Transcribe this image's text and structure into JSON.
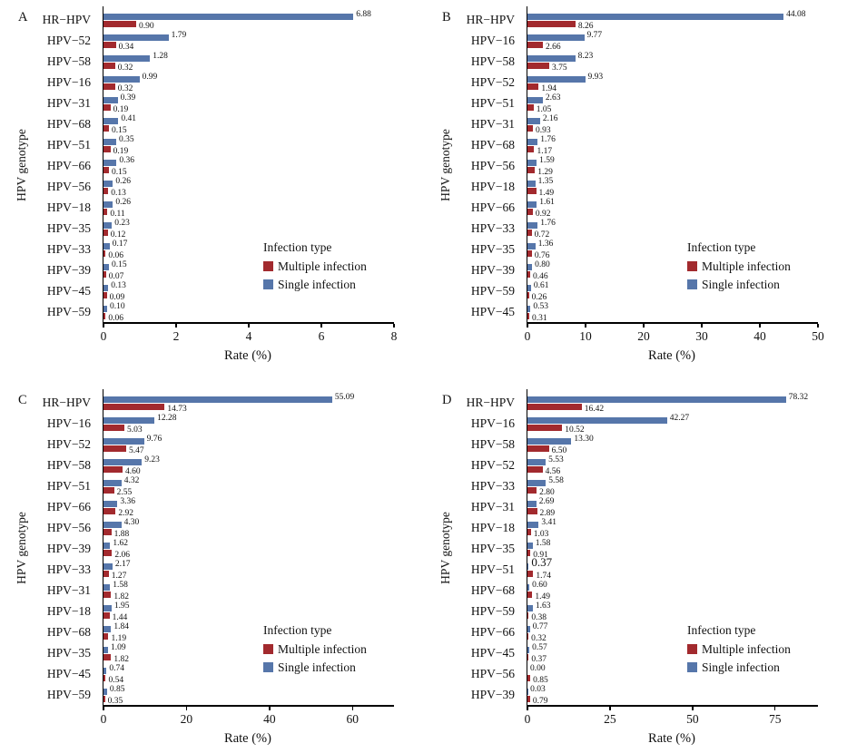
{
  "colors": {
    "single_infection": "#5676AA",
    "multiple_infection": "#A22A2E",
    "axis": "#000000",
    "background": "#FFFFFF"
  },
  "legend": {
    "title": "Infection type",
    "items": [
      {
        "label": "Multiple infection",
        "color": "#A22A2E"
      },
      {
        "label": "Single infection",
        "color": "#5676AA"
      }
    ]
  },
  "chart_data": [
    {
      "panel": "A",
      "type": "bar",
      "orientation": "horizontal",
      "title": "",
      "xlabel": "Rate (%)",
      "ylabel": "HPV genotype",
      "xlim": [
        0,
        8
      ],
      "xticks": [
        0,
        2,
        4,
        6,
        8
      ],
      "grid": false,
      "legend_position": "inside-right-bottom",
      "categories": [
        "HR−HPV",
        "HPV−52",
        "HPV−58",
        "HPV−16",
        "HPV−31",
        "HPV−68",
        "HPV−51",
        "HPV−66",
        "HPV−56",
        "HPV−18",
        "HPV−35",
        "HPV−33",
        "HPV−39",
        "HPV−45",
        "HPV−59"
      ],
      "series": [
        {
          "name": "Single infection",
          "color": "#5676AA",
          "values": [
            "6.88",
            "1.79",
            "1.28",
            "0.99",
            "0.39",
            "0.41",
            "0.35",
            "0.36",
            "0.26",
            "0.26",
            "0.23",
            "0.17",
            "0.15",
            "0.13",
            "0.10"
          ]
        },
        {
          "name": "Multiple infection",
          "color": "#A22A2E",
          "values": [
            "0.90",
            "0.34",
            "0.32",
            "0.32",
            "0.19",
            "0.15",
            "0.19",
            "0.15",
            "0.13",
            "0.11",
            "0.12",
            "0.06",
            "0.07",
            "0.09",
            "0.06"
          ]
        }
      ]
    },
    {
      "panel": "B",
      "type": "bar",
      "orientation": "horizontal",
      "title": "",
      "xlabel": "Rate (%)",
      "ylabel": "HPV genotype",
      "xlim": [
        0,
        50
      ],
      "xticks": [
        0,
        10,
        20,
        30,
        40,
        50
      ],
      "grid": false,
      "legend_position": "inside-right-bottom",
      "categories": [
        "HR−HPV",
        "HPV−16",
        "HPV−58",
        "HPV−52",
        "HPV−51",
        "HPV−31",
        "HPV−68",
        "HPV−56",
        "HPV−18",
        "HPV−66",
        "HPV−33",
        "HPV−35",
        "HPV−39",
        "HPV−59",
        "HPV−45"
      ],
      "series": [
        {
          "name": "Single infection",
          "color": "#5676AA",
          "values": [
            "44.08",
            "9.77",
            "8.23",
            "9.93",
            "2.63",
            "2.16",
            "1.76",
            "1.59",
            "1.35",
            "1.61",
            "1.76",
            "1.36",
            "0.80",
            "0.61",
            "0.53"
          ]
        },
        {
          "name": "Multiple infection",
          "color": "#A22A2E",
          "values": [
            "8.26",
            "2.66",
            "3.75",
            "1.94",
            "1.05",
            "0.93",
            "1.17",
            "1.29",
            "1.49",
            "0.92",
            "0.72",
            "0.76",
            "0.46",
            "0.26",
            "0.31"
          ]
        }
      ]
    },
    {
      "panel": "C",
      "type": "bar",
      "orientation": "horizontal",
      "title": "",
      "xlabel": "Rate (%)",
      "ylabel": "HPV genotype",
      "xlim": [
        0,
        70
      ],
      "xticks": [
        0,
        20,
        40,
        60
      ],
      "grid": false,
      "legend_position": "inside-right-bottom",
      "categories": [
        "HR−HPV",
        "HPV−16",
        "HPV−52",
        "HPV−58",
        "HPV−51",
        "HPV−66",
        "HPV−56",
        "HPV−39",
        "HPV−33",
        "HPV−31",
        "HPV−18",
        "HPV−68",
        "HPV−35",
        "HPV−45",
        "HPV−59"
      ],
      "series": [
        {
          "name": "Single infection",
          "color": "#5676AA",
          "values": [
            "55.09",
            "12.28",
            "9.76",
            "9.23",
            "4.32",
            "3.36",
            "4.30",
            "1.62",
            "2.17",
            "1.58",
            "1.95",
            "1.84",
            "1.09",
            "0.74",
            "0.85"
          ]
        },
        {
          "name": "Multiple infection",
          "color": "#A22A2E",
          "values": [
            "14.73",
            "5.03",
            "5.47",
            "4.60",
            "2.55",
            "2.92",
            "1.88",
            "2.06",
            "1.27",
            "1.82",
            "1.44",
            "1.19",
            "1.82",
            "0.54",
            "0.35"
          ]
        }
      ]
    },
    {
      "panel": "D",
      "type": "bar",
      "orientation": "horizontal",
      "title": "",
      "xlabel": "Rate (%)",
      "ylabel": "HPV genotype",
      "xlim": [
        0,
        88
      ],
      "xticks": [
        0,
        25,
        50,
        75
      ],
      "grid": false,
      "legend_position": "inside-right-bottom",
      "categories": [
        "HR−HPV",
        "HPV−16",
        "HPV−58",
        "HPV−52",
        "HPV−33",
        "HPV−31",
        "HPV−18",
        "HPV−35",
        "HPV−51",
        "HPV−68",
        "HPV−59",
        "HPV−66",
        "HPV−45",
        "HPV−56",
        "HPV−39"
      ],
      "series": [
        {
          "name": "Single infection",
          "color": "#5676AA",
          "values": [
            "78.32",
            "42.27",
            "13.30",
            "5.53",
            "5.58",
            "2.69",
            "3.41",
            "1.58",
            "0.37",
            "0.60",
            "1.63",
            "0.77",
            "0.57",
            "0.00",
            "0.03"
          ]
        },
        {
          "name": "Multiple infection",
          "color": "#A22A2E",
          "values": [
            "16.42",
            "10.52",
            "6.50",
            "4.56",
            "2.80",
            "2.89",
            "1.03",
            "0.91",
            "1.74",
            "1.49",
            "0.38",
            "0.32",
            "0.37",
            "0.85",
            "0.79"
          ]
        }
      ],
      "large_value_labels": [
        {
          "category": "HPV−51",
          "series": "Single infection"
        }
      ]
    }
  ]
}
